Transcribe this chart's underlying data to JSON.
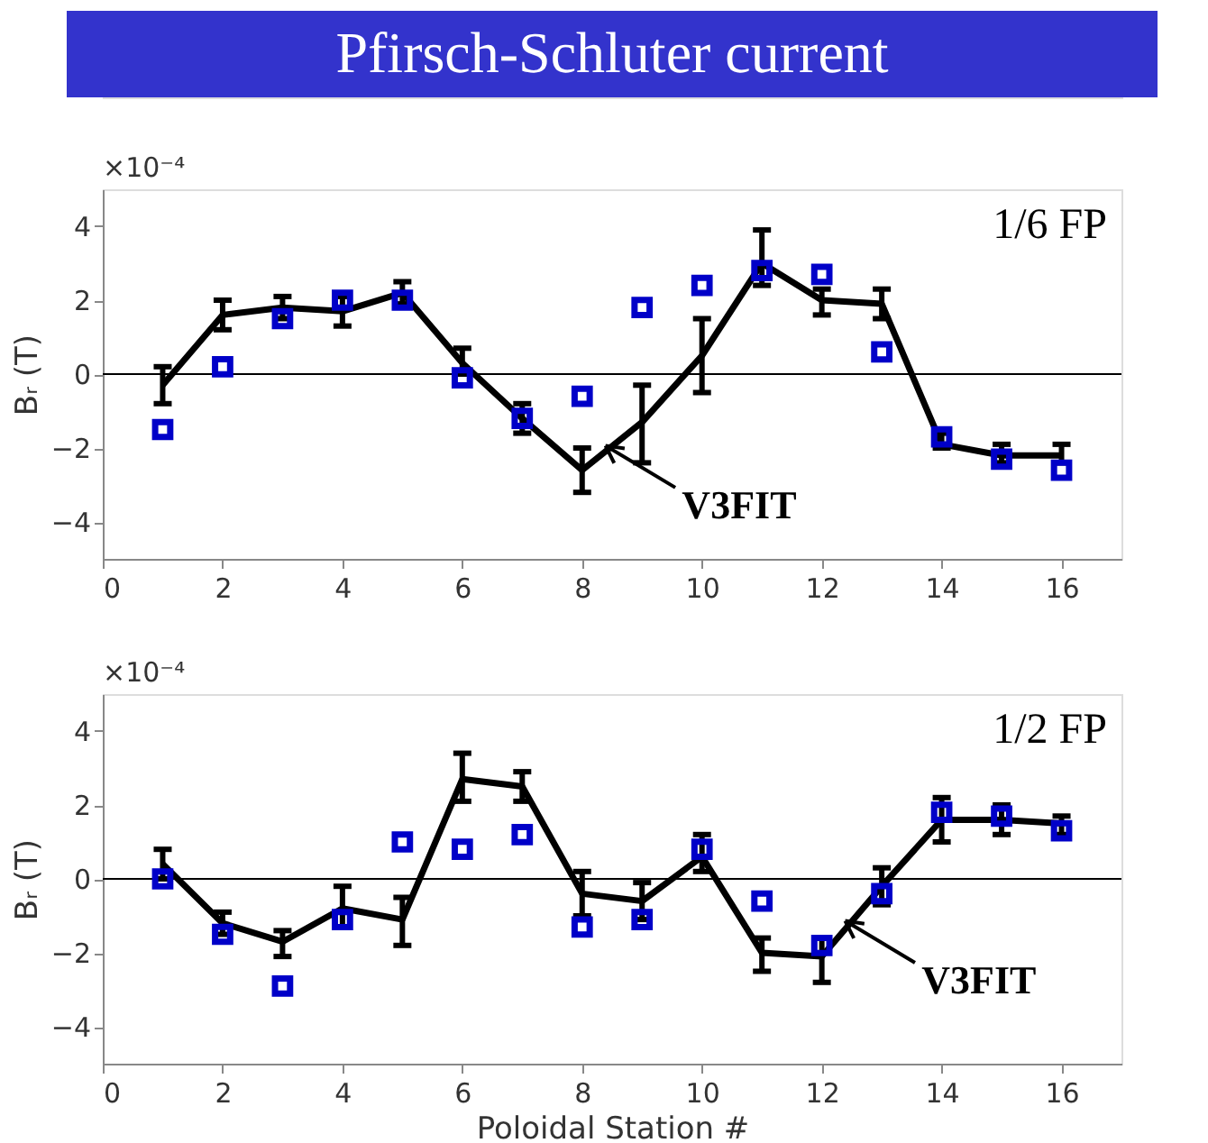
{
  "chart_data": [
    {
      "type": "line",
      "title": "Pfirsch-Schluter current",
      "ylabel": "Bᵣ (T)",
      "xlim": [
        0,
        17
      ],
      "xticks": [
        0,
        2,
        4,
        6,
        8,
        10,
        12,
        14,
        16
      ],
      "ylim": [
        -5,
        5
      ],
      "yticks": [
        -4,
        -2,
        0,
        2,
        4
      ],
      "grid": false,
      "x": [
        1,
        2,
        3,
        4,
        5,
        6,
        7,
        8,
        9,
        10,
        11,
        12,
        13,
        14,
        15,
        16
      ],
      "series": [
        {
          "type": "line",
          "color": "#000000",
          "marker": "none",
          "line_style": "solid",
          "values": [
            -0.3,
            1.6,
            1.8,
            1.7,
            2.2,
            0.3,
            -1.2,
            -2.6,
            -1.3,
            0.5,
            3.0,
            2.0,
            1.9,
            -1.9,
            -2.2,
            -2.2
          ],
          "errors": [
            [
              -0.8,
              0.2
            ],
            [
              1.2,
              2.0
            ],
            [
              1.5,
              2.1
            ],
            [
              1.3,
              2.1
            ],
            [
              1.9,
              2.5
            ],
            [
              0.0,
              0.7
            ],
            [
              -1.6,
              -0.8
            ],
            [
              -3.2,
              -2.0
            ],
            [
              -2.4,
              -0.3
            ],
            [
              -0.5,
              1.5
            ],
            [
              2.4,
              3.9
            ],
            [
              1.6,
              2.3
            ],
            [
              1.5,
              2.3
            ],
            [
              -2.0,
              -1.6
            ],
            [
              -2.4,
              -1.9
            ],
            [
              -2.4,
              -1.9
            ]
          ]
        },
        {
          "type": "scatter",
          "color": "#0000c8",
          "marker": "square",
          "values": [
            -1.5,
            0.2,
            1.5,
            2.0,
            2.0,
            -0.1,
            -1.2,
            -0.6,
            1.8,
            2.4,
            2.8,
            2.7,
            0.6,
            -1.7,
            -2.3,
            -2.6
          ]
        }
      ],
      "ref_lines": [
        {
          "axis": "y",
          "value": 0,
          "color": "#000000"
        }
      ],
      "annotations": [
        "×10⁻⁴",
        "1/6 FP",
        {
          "text": "V3FIT",
          "x": 8.4,
          "y": -2.1
        }
      ]
    },
    {
      "type": "line",
      "ylabel": "Bᵣ (T)",
      "xlabel": "Poloidal Station #",
      "xlim": [
        0,
        17
      ],
      "xticks": [
        0,
        2,
        4,
        6,
        8,
        10,
        12,
        14,
        16
      ],
      "ylim": [
        -5,
        5
      ],
      "yticks": [
        -4,
        -2,
        0,
        2,
        4
      ],
      "grid": false,
      "x": [
        1,
        2,
        3,
        4,
        5,
        6,
        7,
        8,
        9,
        10,
        11,
        12,
        13,
        14,
        15,
        16
      ],
      "series": [
        {
          "type": "line",
          "color": "#000000",
          "marker": "none",
          "line_style": "solid",
          "values": [
            0.4,
            -1.2,
            -1.7,
            -0.8,
            -1.1,
            2.7,
            2.5,
            -0.4,
            -0.6,
            0.6,
            -2.0,
            -2.1,
            -0.2,
            1.6,
            1.6,
            1.5
          ],
          "errors": [
            [
              0.0,
              0.8
            ],
            [
              -1.5,
              -0.9
            ],
            [
              -2.1,
              -1.4
            ],
            [
              -1.3,
              -0.2
            ],
            [
              -1.8,
              -0.5
            ],
            [
              2.1,
              3.4
            ],
            [
              2.1,
              2.9
            ],
            [
              -1.0,
              0.2
            ],
            [
              -1.1,
              -0.1
            ],
            [
              0.2,
              1.2
            ],
            [
              -2.5,
              -1.6
            ],
            [
              -2.8,
              -1.6
            ],
            [
              -0.7,
              0.3
            ],
            [
              1.0,
              2.2
            ],
            [
              1.2,
              2.0
            ],
            [
              1.2,
              1.7
            ]
          ]
        },
        {
          "type": "scatter",
          "color": "#0000c8",
          "marker": "square",
          "values": [
            0.0,
            -1.5,
            -2.9,
            -1.1,
            1.0,
            0.8,
            1.2,
            -1.3,
            -1.1,
            0.8,
            -0.6,
            -1.8,
            -0.4,
            1.8,
            1.7,
            1.3
          ]
        }
      ],
      "ref_lines": [
        {
          "axis": "y",
          "value": 0,
          "color": "#000000"
        }
      ],
      "annotations": [
        "×10⁻⁴",
        "1/2 FP",
        {
          "text": "V3FIT",
          "x": 12.4,
          "y": -1.3
        }
      ]
    }
  ]
}
